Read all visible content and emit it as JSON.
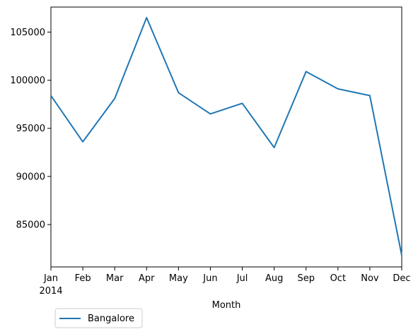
{
  "chart_data": {
    "type": "line",
    "title": "",
    "xlabel": "Month",
    "ylabel": "",
    "year_label": "2014",
    "categories": [
      "Jan",
      "Feb",
      "Mar",
      "Apr",
      "May",
      "Jun",
      "Jul",
      "Aug",
      "Sep",
      "Oct",
      "Nov",
      "Dec"
    ],
    "series": [
      {
        "name": "Bangalore",
        "color": "#1f77b4",
        "values": [
          98400,
          93600,
          98100,
          106500,
          98700,
          96500,
          97600,
          93000,
          100900,
          99100,
          98400,
          81800
        ]
      }
    ],
    "ylim": [
      80600,
      107600
    ],
    "yticks": [
      85000,
      90000,
      95000,
      100000,
      105000
    ],
    "ytick_labels": [
      "85000",
      "90000",
      "95000",
      "100000",
      "105000"
    ],
    "grid": false,
    "legend_position": "lower-left-outside"
  }
}
